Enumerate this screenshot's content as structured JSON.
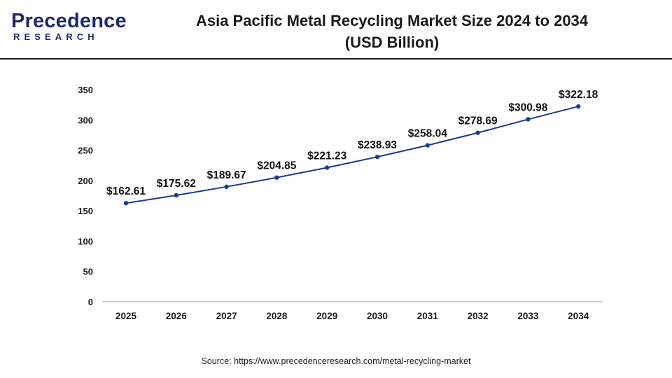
{
  "brand": {
    "logo_line1": "Precedence",
    "logo_line2": "RESEARCH"
  },
  "header": {
    "title_line1": "Asia Pacific Metal Recycling Market Size 2024 to 2034",
    "title_line2": "(USD Billion)"
  },
  "footer": {
    "source": "Source: https://www.precedenceresearch.com/metal-recycling-market"
  },
  "colors": {
    "line": "#1f3c88",
    "marker": "#1f3c88",
    "axis": "#999999",
    "brand": "#1f2a6b"
  },
  "chart_data": {
    "type": "line",
    "x": [
      "2025",
      "2026",
      "2027",
      "2028",
      "2029",
      "2030",
      "2031",
      "2032",
      "2033",
      "2034"
    ],
    "values": [
      162.61,
      175.62,
      189.67,
      204.85,
      221.23,
      238.93,
      258.04,
      278.69,
      300.98,
      322.18
    ],
    "data_labels": [
      "$162.61",
      "$175.62",
      "$189.67",
      "$204.85",
      "$221.23",
      "$238.93",
      "$258.04",
      "$278.69",
      "$300.98",
      "$322.18"
    ],
    "yticks": [
      0,
      50,
      100,
      150,
      200,
      250,
      300,
      350
    ],
    "ylim": [
      0,
      350
    ],
    "grid": false,
    "legend": "none"
  }
}
